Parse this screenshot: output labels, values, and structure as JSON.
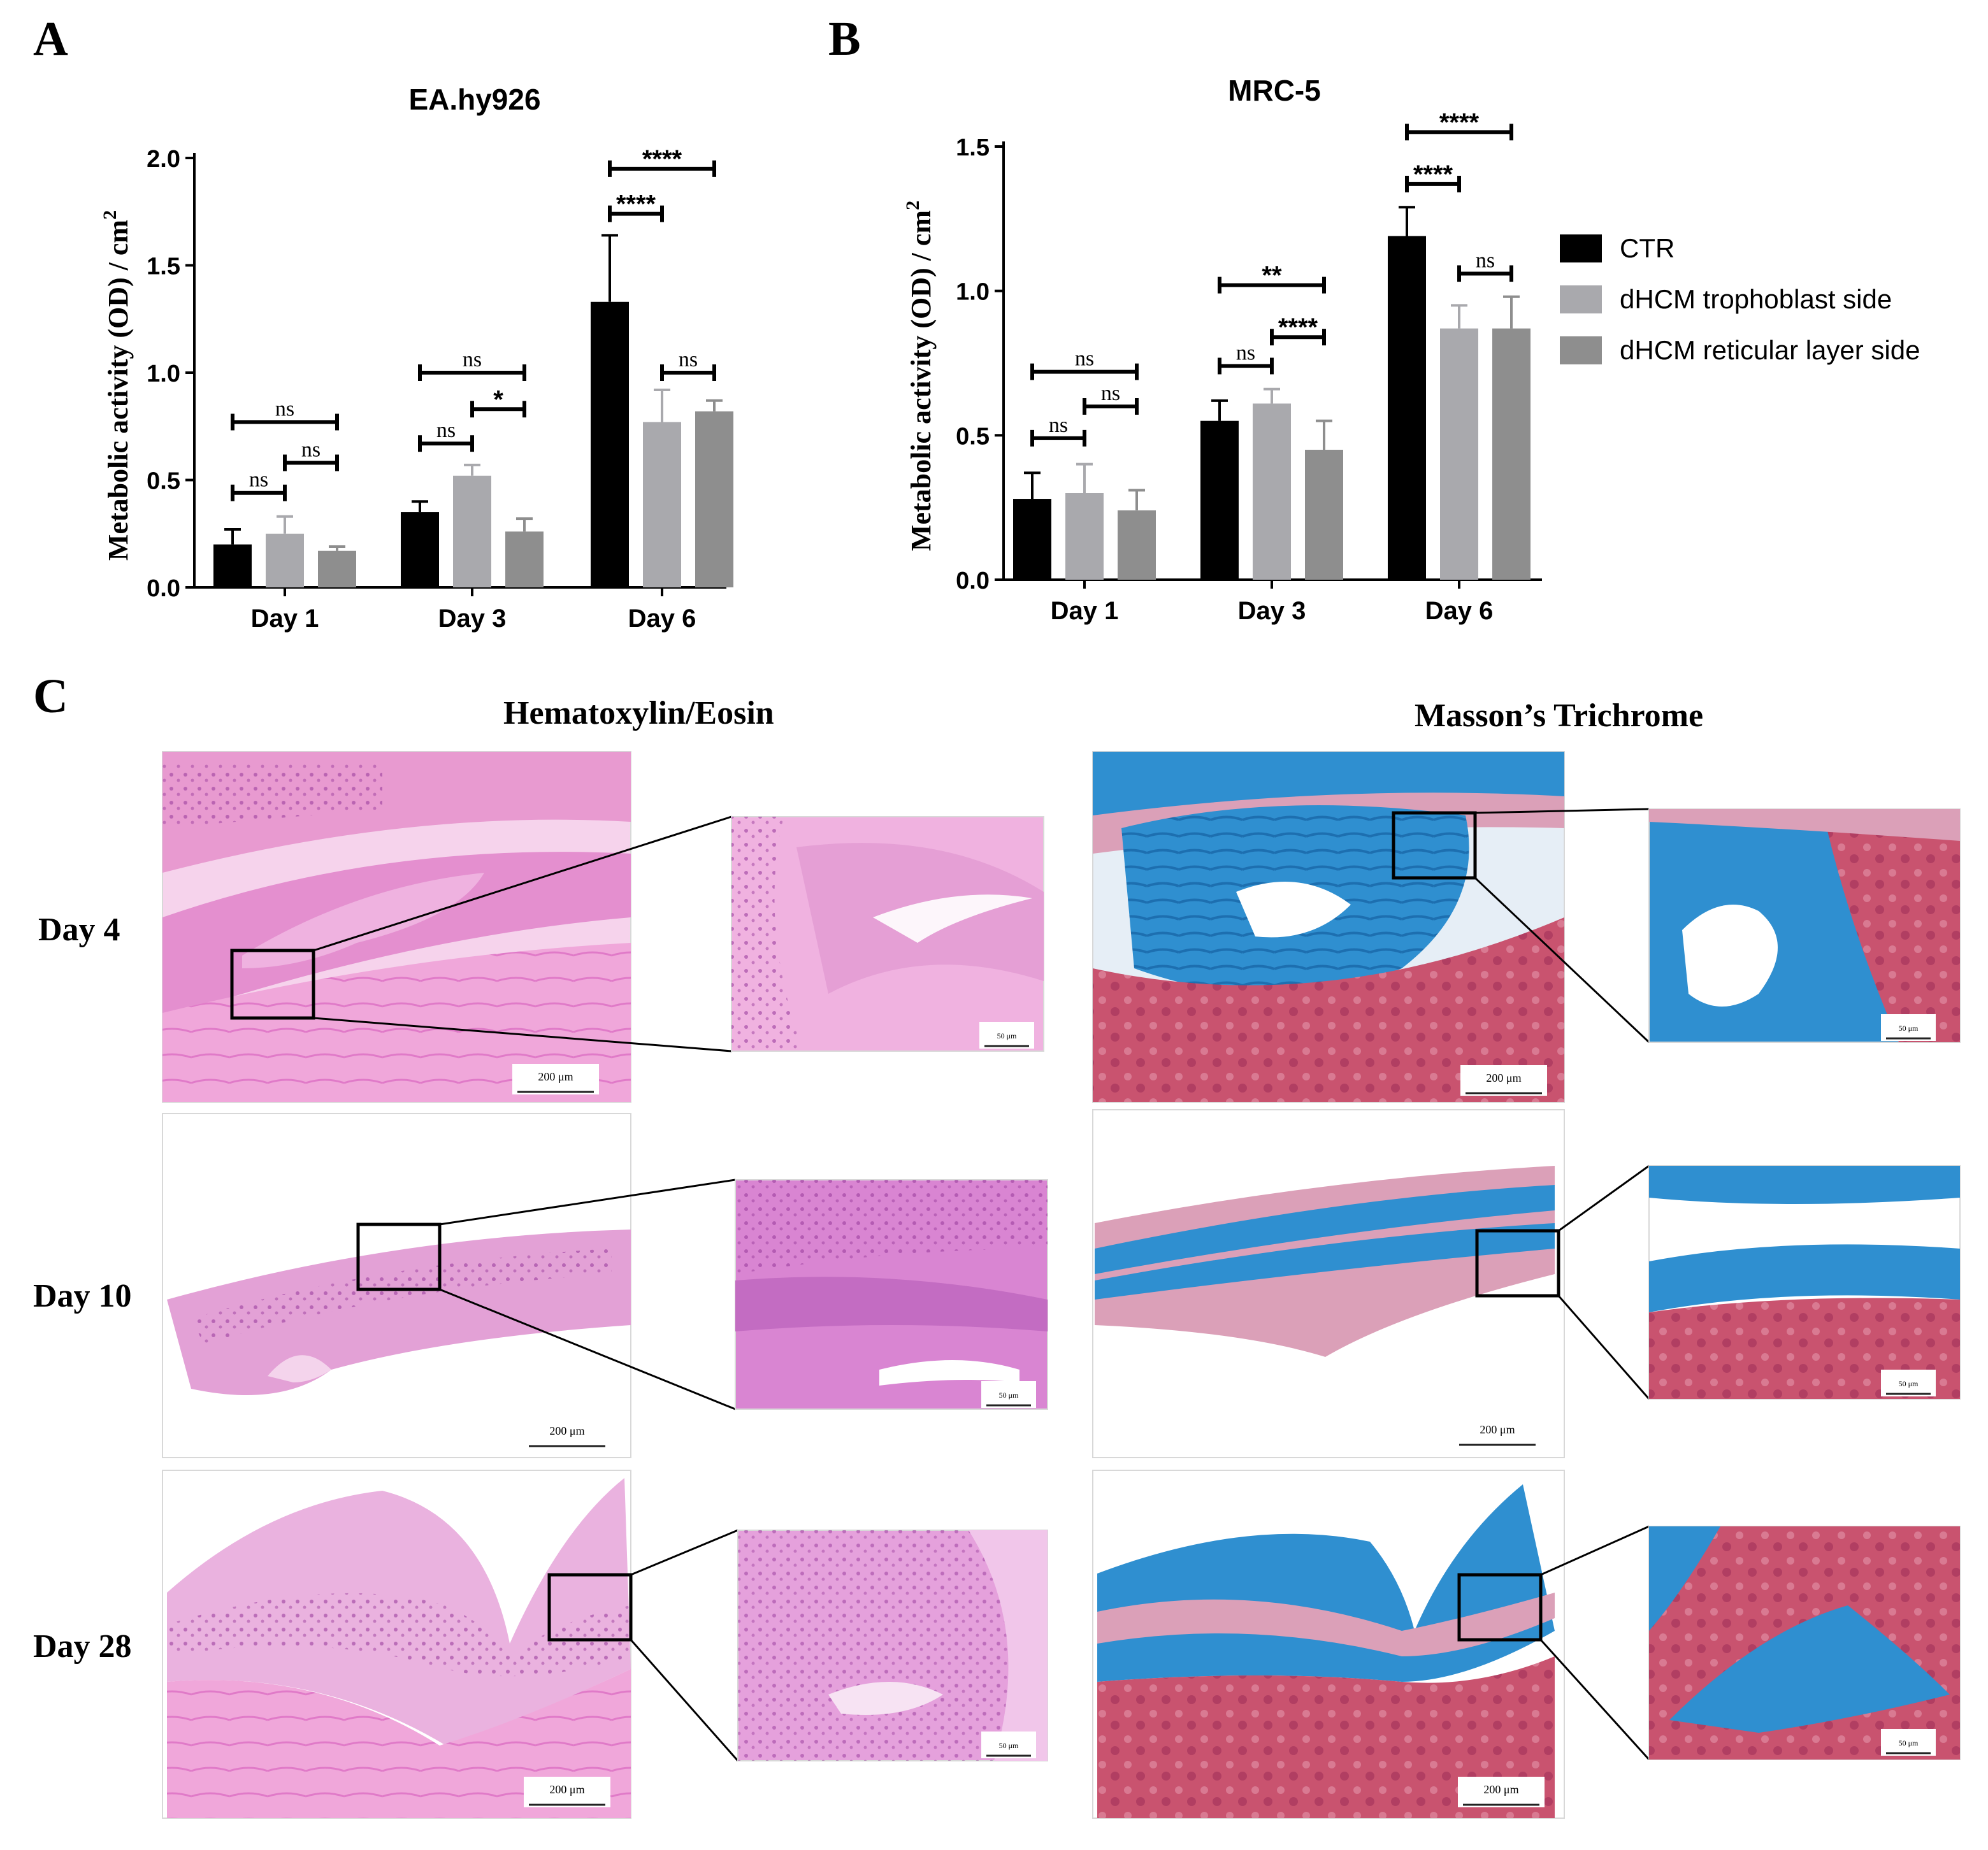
{
  "panel_labels": {
    "a": "A",
    "b": "B",
    "c": "C"
  },
  "chart_data": [
    {
      "type": "bar",
      "title": "EA.hy926",
      "xlabel": "",
      "ylabel": "Metabolic activity (OD) / cm",
      "ylabel_sup": "2",
      "ylim": [
        0,
        2.0
      ],
      "yticks": [
        0.0,
        0.5,
        1.0,
        1.5,
        2.0
      ],
      "ytick_labels": [
        "0.0",
        "0.5",
        "1.0",
        "1.5",
        "2.0"
      ],
      "categories": [
        "Day 1",
        "Day 3",
        "Day 6"
      ],
      "series": [
        {
          "name": "CTR",
          "color": "#000000",
          "values": [
            0.2,
            0.35,
            1.33
          ],
          "errors": [
            0.07,
            0.05,
            0.31
          ]
        },
        {
          "name": "dHCM trophoblast side",
          "color": "#a9a9ad",
          "values": [
            0.25,
            0.52,
            0.77
          ],
          "errors": [
            0.08,
            0.05,
            0.15
          ]
        },
        {
          "name": "dHCM reticular layer side",
          "color": "#8e8e8e",
          "values": [
            0.17,
            0.26,
            0.82
          ],
          "errors": [
            0.02,
            0.06,
            0.05
          ]
        }
      ],
      "annotations": [
        {
          "label": "ns",
          "cat": 0,
          "from": 0,
          "to": 2,
          "y": 0.77
        },
        {
          "label": "ns",
          "cat": 0,
          "from": 1,
          "to": 2,
          "y": 0.58
        },
        {
          "label": "ns",
          "cat": 0,
          "from": 0,
          "to": 1,
          "y": 0.44
        },
        {
          "label": "ns",
          "cat": 1,
          "from": 0,
          "to": 2,
          "y": 1.0
        },
        {
          "label": "*",
          "cat": 1,
          "from": 1,
          "to": 2,
          "y": 0.83
        },
        {
          "label": "ns",
          "cat": 1,
          "from": 0,
          "to": 1,
          "y": 0.67
        },
        {
          "label": "****",
          "cat": 2,
          "from": 0,
          "to": 2,
          "y": 1.95
        },
        {
          "label": "****",
          "cat": 2,
          "from": 0,
          "to": 1,
          "y": 1.74
        },
        {
          "label": "ns",
          "cat": 2,
          "from": 1,
          "to": 2,
          "y": 1.0
        }
      ]
    },
    {
      "type": "bar",
      "title": "MRC-5",
      "xlabel": "",
      "ylabel": "Metabolic activity (OD) / cm",
      "ylabel_sup": "2",
      "ylim": [
        0,
        1.5
      ],
      "yticks": [
        0.0,
        0.5,
        1.0,
        1.5
      ],
      "ytick_labels": [
        "0.0",
        "0.5",
        "1.0",
        "1.5"
      ],
      "categories": [
        "Day 1",
        "Day 3",
        "Day 6"
      ],
      "series": [
        {
          "name": "CTR",
          "color": "#000000",
          "values": [
            0.28,
            0.55,
            1.19
          ],
          "errors": [
            0.09,
            0.07,
            0.1
          ]
        },
        {
          "name": "dHCM trophoblast side",
          "color": "#a9a9ad",
          "values": [
            0.3,
            0.61,
            0.87
          ],
          "errors": [
            0.1,
            0.05,
            0.08
          ]
        },
        {
          "name": "dHCM reticular layer side",
          "color": "#8e8e8e",
          "values": [
            0.24,
            0.45,
            0.87
          ],
          "errors": [
            0.07,
            0.1,
            0.11
          ]
        }
      ],
      "annotations": [
        {
          "label": "ns",
          "cat": 0,
          "from": 0,
          "to": 2,
          "y": 0.72
        },
        {
          "label": "ns",
          "cat": 0,
          "from": 1,
          "to": 2,
          "y": 0.6
        },
        {
          "label": "ns",
          "cat": 0,
          "from": 0,
          "to": 1,
          "y": 0.49
        },
        {
          "label": "**",
          "cat": 1,
          "from": 0,
          "to": 2,
          "y": 1.02
        },
        {
          "label": "****",
          "cat": 1,
          "from": 1,
          "to": 2,
          "y": 0.84
        },
        {
          "label": "ns",
          "cat": 1,
          "from": 0,
          "to": 1,
          "y": 0.74
        },
        {
          "label": "****",
          "cat": 2,
          "from": 0,
          "to": 2,
          "y": 1.55
        },
        {
          "label": "****",
          "cat": 2,
          "from": 0,
          "to": 1,
          "y": 1.37
        },
        {
          "label": "ns",
          "cat": 2,
          "from": 1,
          "to": 2,
          "y": 1.06
        }
      ]
    }
  ],
  "legend": {
    "items": [
      {
        "label": "CTR",
        "color": "#000000"
      },
      {
        "label": "dHCM trophoblast side",
        "color": "#a9a9ad"
      },
      {
        "label": "dHCM reticular layer side",
        "color": "#8e8e8e"
      }
    ]
  },
  "histology": {
    "stain_titles": [
      "Hematoxylin/Eosin",
      "Masson’s Trichrome"
    ],
    "row_labels": [
      "Day 4",
      "Day 10",
      "Day 28"
    ],
    "scalebar_main": "200 μm",
    "scalebar_zoom": "50 μm",
    "colors": {
      "he_bg": "#ec9fd6",
      "he_tissue": "#e07ac8",
      "he_dark": "#b35ab0",
      "mt_blue": "#2f8fd0",
      "mt_red": "#c8476e",
      "mt_pink": "#dba0b8"
    }
  }
}
